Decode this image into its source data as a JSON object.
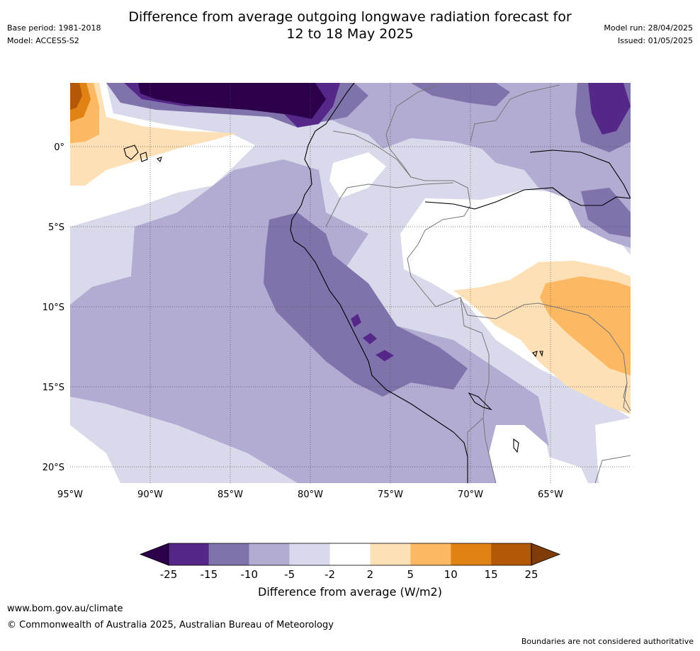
{
  "title": {
    "line1": "Difference from average outgoing longwave radiation forecast for",
    "line2": "12 to 18 May 2025"
  },
  "meta": {
    "base_period": "Base period: 1981-2018",
    "model": "Model: ACCESS-S2",
    "model_run": "Model run: 28/04/2025",
    "issued": "Issued: 01/05/2025"
  },
  "map": {
    "lon_labels": [
      "95°W",
      "90°W",
      "85°W",
      "80°W",
      "75°W",
      "70°W",
      "65°W"
    ],
    "lat_labels": [
      "0°",
      "5°S",
      "10°S",
      "15°S",
      "20°S"
    ],
    "colors": {
      "frame": "#ffffff",
      "gridline": "#555555",
      "coast": "#000000",
      "border": "#777777"
    }
  },
  "colorbar": {
    "tick_labels": [
      "-25",
      "-15",
      "-10",
      "-5",
      "-2",
      "2",
      "5",
      "10",
      "15",
      "25"
    ],
    "label": "Difference from average (W/m2)",
    "colors": [
      "#2d004b",
      "#542788",
      "#8073ac",
      "#b2abd2",
      "#d8daeb",
      "#ffffff",
      "#fee0b6",
      "#fdb863",
      "#e08214",
      "#b35806",
      "#7f3b08"
    ]
  },
  "footer": {
    "url": "www.bom.gov.au/climate",
    "copyright": "© Commonwealth of Australia 2025, Australian Bureau of Meteorology",
    "note": "Boundaries are not considered authoritative"
  }
}
